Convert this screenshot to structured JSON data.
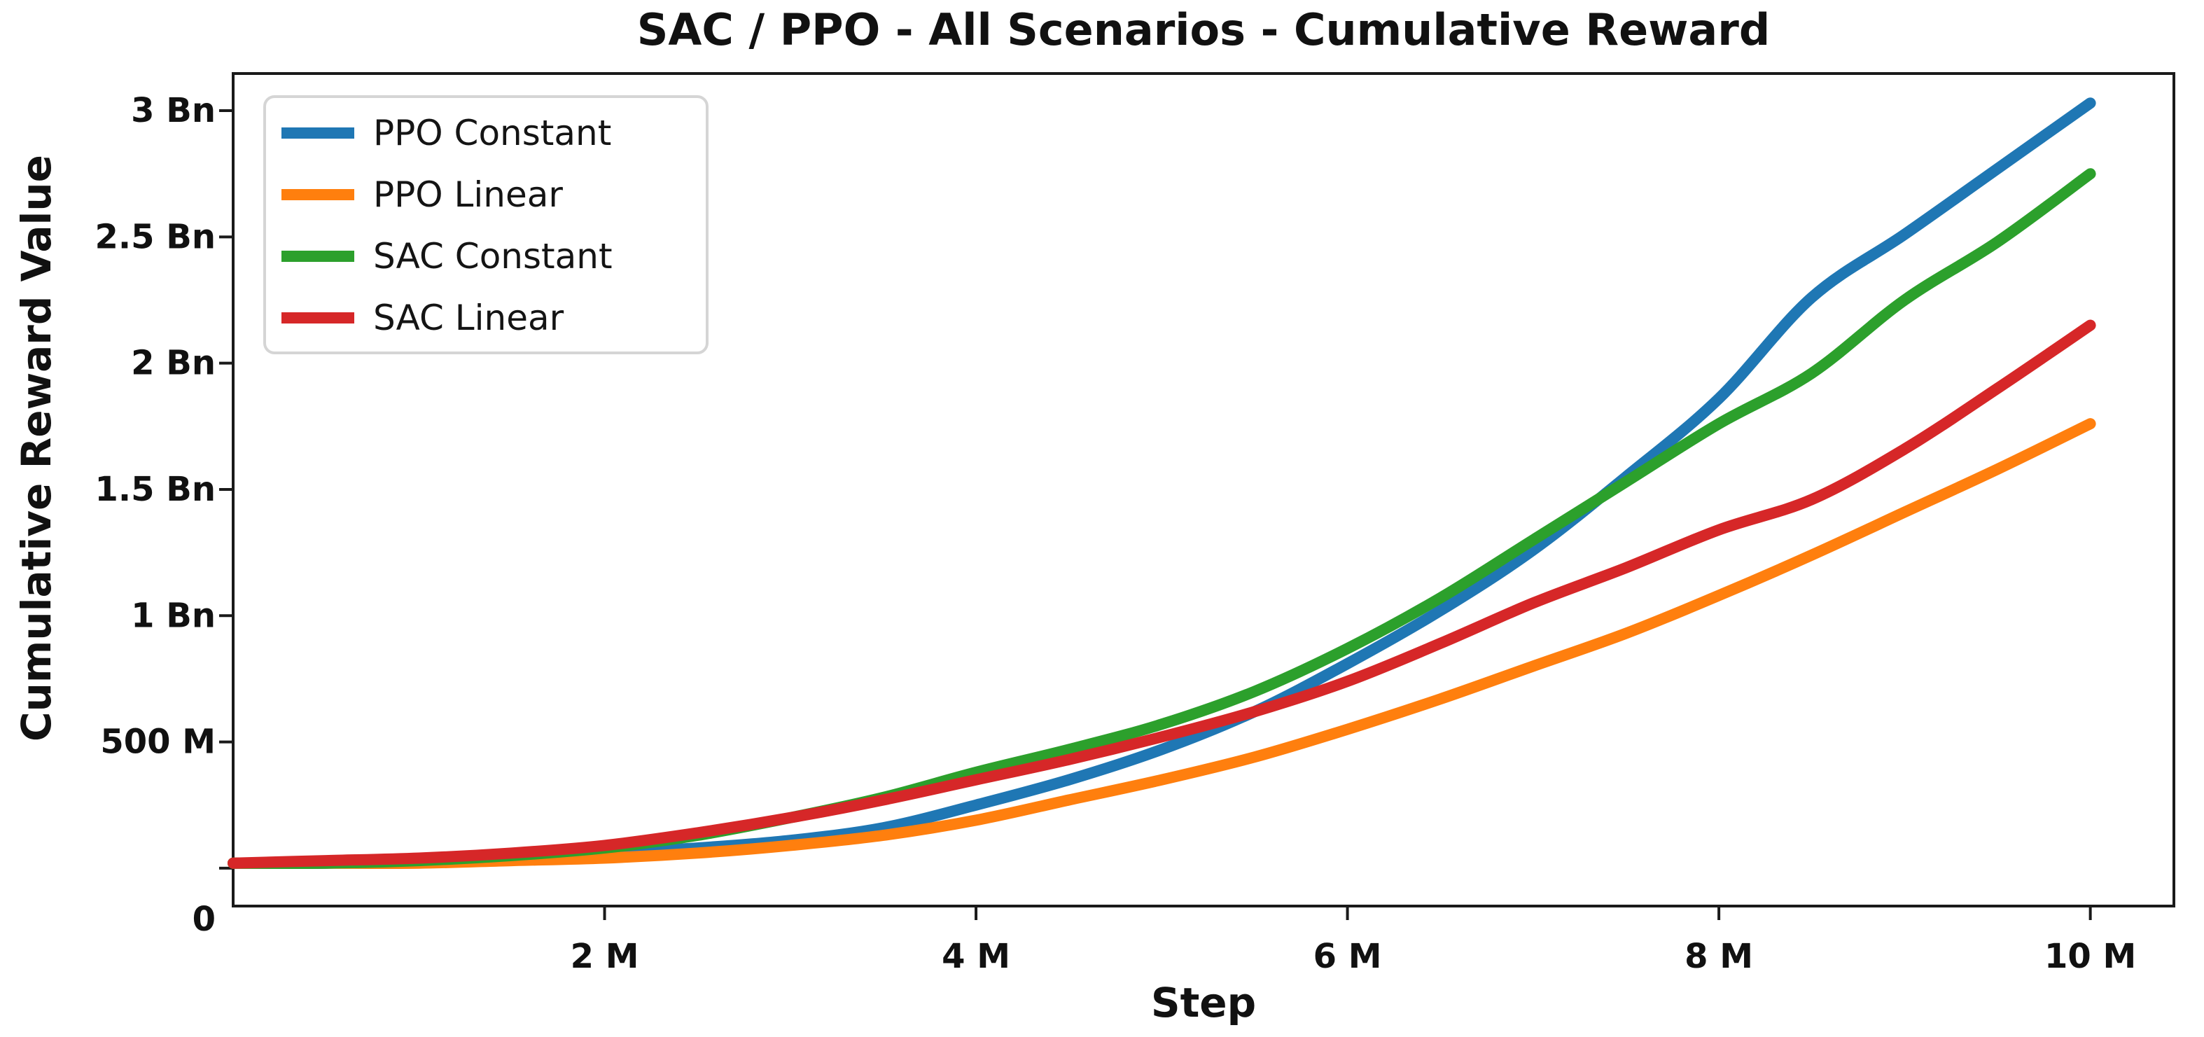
{
  "chart_data": {
    "type": "line",
    "title": "SAC / PPO - All Scenarios - Cumulative Reward",
    "xlabel": "Step",
    "ylabel": "Cumulative Reward Value",
    "x_unit": "M steps",
    "y_unit": "Bn",
    "grid": false,
    "legend_position": "upper left",
    "xlim": [
      0,
      10.45
    ],
    "ylim": [
      -0.15,
      3.147
    ],
    "x_ticks": [
      {
        "value": 2,
        "label": "2 M"
      },
      {
        "value": 4,
        "label": "4 M"
      },
      {
        "value": 6,
        "label": "6 M"
      },
      {
        "value": 8,
        "label": "8 M"
      },
      {
        "value": 10,
        "label": "10 M"
      }
    ],
    "y_ticks": [
      {
        "value": 0,
        "label": "0"
      },
      {
        "value": 0.5,
        "label": "500 M"
      },
      {
        "value": 1,
        "label": "1 Bn"
      },
      {
        "value": 1.5,
        "label": "1.5 Bn"
      },
      {
        "value": 2,
        "label": "2 Bn"
      },
      {
        "value": 2.5,
        "label": "2.5 Bn"
      },
      {
        "value": 3,
        "label": "3 Bn"
      }
    ],
    "x": [
      0,
      0.5,
      1,
      1.5,
      2,
      2.5,
      3,
      3.5,
      4,
      4.5,
      5,
      5.5,
      6,
      6.5,
      7,
      7.5,
      8,
      8.5,
      9,
      9.5,
      10
    ],
    "series": [
      {
        "name": "PPO Constant",
        "color": "#1f77b4",
        "values": [
          0.02,
          0.02,
          0.03,
          0.04,
          0.06,
          0.08,
          0.11,
          0.16,
          0.25,
          0.35,
          0.47,
          0.62,
          0.81,
          1.02,
          1.26,
          1.55,
          1.86,
          2.26,
          2.51,
          2.77,
          3.03
        ]
      },
      {
        "name": "PPO Linear",
        "color": "#ff7f0e",
        "values": [
          0.02,
          0.02,
          0.02,
          0.03,
          0.04,
          0.06,
          0.09,
          0.13,
          0.19,
          0.27,
          0.35,
          0.44,
          0.55,
          0.67,
          0.8,
          0.93,
          1.08,
          1.24,
          1.41,
          1.58,
          1.76
        ]
      },
      {
        "name": "SAC Constant",
        "color": "#2ca02c",
        "values": [
          0.02,
          0.02,
          0.03,
          0.05,
          0.08,
          0.13,
          0.2,
          0.28,
          0.38,
          0.47,
          0.57,
          0.7,
          0.87,
          1.07,
          1.3,
          1.53,
          1.76,
          1.96,
          2.25,
          2.48,
          2.75
        ]
      },
      {
        "name": "SAC Linear",
        "color": "#d62728",
        "values": [
          0.02,
          0.03,
          0.04,
          0.06,
          0.09,
          0.14,
          0.2,
          0.27,
          0.35,
          0.43,
          0.52,
          0.62,
          0.74,
          0.89,
          1.05,
          1.19,
          1.34,
          1.46,
          1.66,
          1.9,
          2.15
        ]
      }
    ],
    "style": {
      "line_width": 16,
      "spine_color": "#1a1a1a",
      "text_color": "#111111",
      "legend_border_color": "#d5d5d5",
      "background": "#ffffff"
    }
  }
}
